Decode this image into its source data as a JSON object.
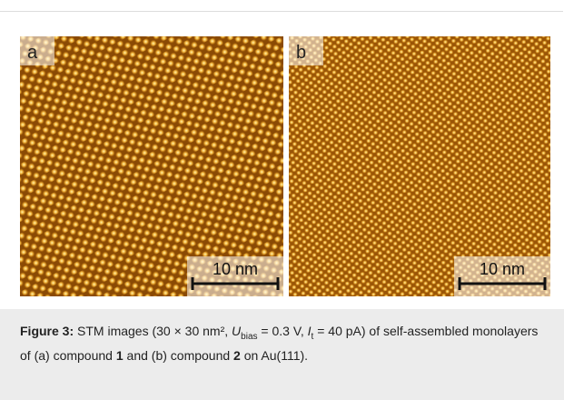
{
  "figure": {
    "panels": [
      {
        "label": "a",
        "scale_bar": "10 nm"
      },
      {
        "label": "b",
        "scale_bar": "10 nm"
      }
    ],
    "caption": {
      "label": "Figure 3:",
      "parts": [
        "STM images (30 × 30 nm², ",
        "U",
        "bias",
        " = 0.3 V, ",
        "I",
        "t",
        " = 40 pA) of self-assembled monolayers of (a) compound ",
        "1",
        " and (b) compound ",
        "2",
        " on Au(111)."
      ]
    }
  }
}
